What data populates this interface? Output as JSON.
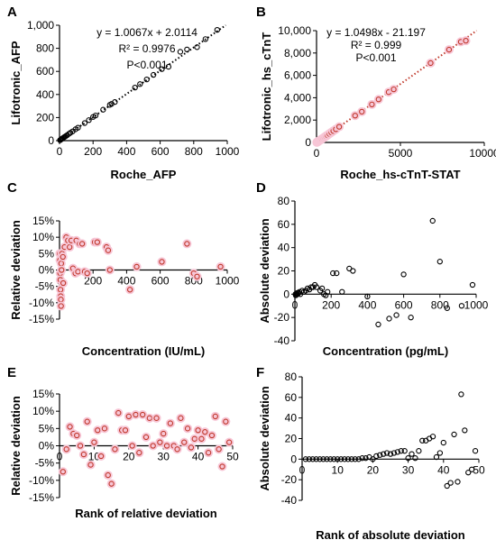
{
  "colors": {
    "black_marker": "#000000",
    "red_marker": "#c0392b",
    "marker_halo": "#f7c6d6",
    "red_fit_line": "#c0392b",
    "green_marker": "#2e8b57"
  },
  "chart_data": [
    {
      "id": "A",
      "letter": "A",
      "type": "scatter",
      "xlabel": "Roche_AFP",
      "ylabel": "Lifotronic_AFP",
      "xlim": [
        0,
        1000
      ],
      "ylim": [
        0,
        1000
      ],
      "xticks": [
        0,
        200,
        400,
        600,
        800,
        1000
      ],
      "yticks": [
        0,
        200,
        400,
        600,
        800,
        1000
      ],
      "xtick_labels": [
        "0",
        "200",
        "400",
        "600",
        "800",
        "1000"
      ],
      "ytick_labels": [
        "0",
        "200",
        "400",
        "600",
        "800",
        "1,000"
      ],
      "annotations": [
        "y = 1.0067x + 2.0114",
        "R² = 0.9976",
        "P<0.001"
      ],
      "fit_line": {
        "slope": 1.0067,
        "intercept": 2.0114,
        "color": "black"
      },
      "marker": "black",
      "points": [
        [
          3,
          4
        ],
        [
          6,
          7
        ],
        [
          9,
          11
        ],
        [
          12,
          14
        ],
        [
          16,
          17
        ],
        [
          20,
          22
        ],
        [
          26,
          28
        ],
        [
          31,
          33
        ],
        [
          38,
          40
        ],
        [
          45,
          47
        ],
        [
          55,
          58
        ],
        [
          65,
          68
        ],
        [
          78,
          80
        ],
        [
          95,
          98
        ],
        [
          110,
          112
        ],
        [
          150,
          152
        ],
        [
          175,
          178
        ],
        [
          200,
          205
        ],
        [
          215,
          218
        ],
        [
          260,
          268
        ],
        [
          300,
          310
        ],
        [
          310,
          318
        ],
        [
          330,
          335
        ],
        [
          450,
          460
        ],
        [
          480,
          490
        ],
        [
          520,
          530
        ],
        [
          560,
          570
        ],
        [
          610,
          620
        ],
        [
          650,
          640
        ],
        [
          720,
          770
        ],
        [
          760,
          790
        ],
        [
          820,
          810
        ],
        [
          870,
          880
        ],
        [
          940,
          960
        ]
      ]
    },
    {
      "id": "B",
      "letter": "B",
      "type": "scatter",
      "xlabel": "Roche_hs-cTnT-STAT",
      "ylabel": "Lifotronic_hs_cTnT",
      "xlim": [
        0,
        10000
      ],
      "ylim": [
        0,
        10000
      ],
      "xticks": [
        0,
        5000,
        10000
      ],
      "yticks": [
        0,
        2000,
        4000,
        6000,
        8000,
        10000
      ],
      "xtick_labels": [
        "0",
        "5000",
        "10000"
      ],
      "ytick_labels": [
        "0",
        "2,000",
        "4,000",
        "6,000",
        "8,000",
        "10,000"
      ],
      "annotations": [
        "y = 1.0498x - 21.197",
        "R² = 0.999",
        "P<0.001"
      ],
      "fit_line": {
        "slope": 1.0498,
        "intercept": -21.197,
        "color": "red"
      },
      "marker": "red",
      "points": [
        [
          20,
          10
        ],
        [
          40,
          30
        ],
        [
          60,
          50
        ],
        [
          90,
          80
        ],
        [
          120,
          110
        ],
        [
          160,
          150
        ],
        [
          200,
          190
        ],
        [
          260,
          250
        ],
        [
          320,
          310
        ],
        [
          400,
          390
        ],
        [
          480,
          470
        ],
        [
          560,
          560
        ],
        [
          650,
          650
        ],
        [
          760,
          770
        ],
        [
          880,
          900
        ],
        [
          1000,
          1030
        ],
        [
          1150,
          1180
        ],
        [
          1350,
          1400
        ],
        [
          2300,
          2400
        ],
        [
          2700,
          2750
        ],
        [
          3300,
          3400
        ],
        [
          3700,
          3850
        ],
        [
          4300,
          4500
        ],
        [
          4600,
          4750
        ],
        [
          6800,
          7100
        ],
        [
          7900,
          8300
        ],
        [
          8600,
          9000
        ],
        [
          8900,
          9100
        ]
      ]
    },
    {
      "id": "C",
      "letter": "C",
      "type": "scatter",
      "xlabel": "Concentration (IU/mL)",
      "ylabel": "Relative deviation",
      "xlim": [
        0,
        1000
      ],
      "ylim": [
        -15,
        15
      ],
      "xticks": [
        0,
        200,
        400,
        600,
        800,
        1000
      ],
      "yticks": [
        -15,
        -10,
        -5,
        0,
        5,
        10,
        15
      ],
      "xtick_labels": [
        "0",
        "200",
        "400",
        "600",
        "800",
        "1000"
      ],
      "ytick_labels": [
        "-15%",
        "-10%",
        "-5%",
        "0%",
        "5%",
        "10%",
        "15%"
      ],
      "annotations": [],
      "marker": "red",
      "points": [
        [
          2,
          5
        ],
        [
          3,
          3
        ],
        [
          4,
          -1
        ],
        [
          5,
          -3
        ],
        [
          6,
          -6
        ],
        [
          7,
          -8
        ],
        [
          8,
          -9
        ],
        [
          9,
          -11
        ],
        [
          10,
          2
        ],
        [
          12,
          0
        ],
        [
          15,
          5
        ],
        [
          20,
          4
        ],
        [
          22,
          -4
        ],
        [
          30,
          7
        ],
        [
          40,
          10
        ],
        [
          50,
          9
        ],
        [
          60,
          7
        ],
        [
          70,
          9
        ],
        [
          80,
          0.5
        ],
        [
          95,
          -1
        ],
        [
          100,
          9
        ],
        [
          110,
          -0.5
        ],
        [
          120,
          8
        ],
        [
          135,
          8
        ],
        [
          150,
          -0.5
        ],
        [
          165,
          -1
        ],
        [
          210,
          8.5
        ],
        [
          225,
          8.5
        ],
        [
          280,
          7
        ],
        [
          290,
          6
        ],
        [
          300,
          0
        ],
        [
          420,
          -6
        ],
        [
          460,
          1
        ],
        [
          610,
          2.5
        ],
        [
          760,
          8
        ],
        [
          800,
          -1
        ],
        [
          820,
          -2
        ],
        [
          960,
          1
        ]
      ]
    },
    {
      "id": "D",
      "letter": "D",
      "type": "scatter",
      "xlabel": "Concentration (pg/mL)",
      "ylabel": "Absolute deviation",
      "xlim": [
        0,
        1000
      ],
      "ylim": [
        -40,
        80
      ],
      "xticks": [
        0,
        200,
        400,
        600,
        800,
        1000
      ],
      "yticks": [
        -40,
        -20,
        0,
        20,
        40,
        60,
        80
      ],
      "xtick_labels": [
        "0",
        "200",
        "400",
        "600",
        "800",
        "1000"
      ],
      "ytick_labels": [
        "-40",
        "-20",
        "0",
        "20",
        "40",
        "60",
        "80"
      ],
      "annotations": [],
      "marker": "black",
      "points": [
        [
          3,
          0
        ],
        [
          5,
          -1
        ],
        [
          8,
          0
        ],
        [
          12,
          1
        ],
        [
          15,
          0
        ],
        [
          20,
          1
        ],
        [
          25,
          2
        ],
        [
          30,
          0
        ],
        [
          40,
          3
        ],
        [
          50,
          2
        ],
        [
          60,
          3
        ],
        [
          70,
          5
        ],
        [
          80,
          4
        ],
        [
          90,
          6
        ],
        [
          100,
          6
        ],
        [
          110,
          8
        ],
        [
          120,
          6
        ],
        [
          140,
          3
        ],
        [
          150,
          5
        ],
        [
          160,
          0
        ],
        [
          170,
          -1
        ],
        [
          180,
          2
        ],
        [
          210,
          18
        ],
        [
          230,
          18
        ],
        [
          260,
          2
        ],
        [
          300,
          22
        ],
        [
          320,
          20
        ],
        [
          400,
          -2
        ],
        [
          460,
          -26
        ],
        [
          520,
          -21
        ],
        [
          560,
          -18
        ],
        [
          600,
          17
        ],
        [
          640,
          -20
        ],
        [
          760,
          63
        ],
        [
          800,
          28
        ],
        [
          840,
          -12
        ],
        [
          920,
          -10
        ],
        [
          980,
          8
        ]
      ]
    },
    {
      "id": "E",
      "letter": "E",
      "type": "scatter",
      "xlabel": "Rank of relative deviation",
      "ylabel": "Relative deviation",
      "xlim": [
        0,
        50
      ],
      "ylim": [
        -15,
        15
      ],
      "xticks": [
        0,
        10,
        20,
        30,
        40,
        50
      ],
      "yticks": [
        -15,
        -10,
        -5,
        0,
        5,
        10,
        15
      ],
      "xtick_labels": [
        "0",
        "10",
        "20",
        "30",
        "40",
        "50"
      ],
      "ytick_labels": [
        "-15%",
        "-10%",
        "-5%",
        "0%",
        "5%",
        "10%",
        "15%"
      ],
      "annotations": [],
      "marker": "red",
      "points": [
        [
          1,
          -7.5
        ],
        [
          2,
          -1
        ],
        [
          3,
          5.5
        ],
        [
          4,
          3.5
        ],
        [
          5,
          3
        ],
        [
          6,
          0
        ],
        [
          7,
          -2.5
        ],
        [
          8,
          7
        ],
        [
          9,
          -5.5
        ],
        [
          10,
          1
        ],
        [
          11,
          4.5
        ],
        [
          12,
          -3
        ],
        [
          13,
          5
        ],
        [
          14,
          -8.5
        ],
        [
          15,
          -11
        ],
        [
          16,
          -1
        ],
        [
          17,
          9.5
        ],
        [
          18,
          4.5
        ],
        [
          19,
          4.5
        ],
        [
          20,
          8.5
        ],
        [
          21,
          0
        ],
        [
          22,
          9
        ],
        [
          23,
          -2
        ],
        [
          24,
          9
        ],
        [
          25,
          2.5
        ],
        [
          26,
          8
        ],
        [
          27,
          0
        ],
        [
          28,
          8
        ],
        [
          29,
          1
        ],
        [
          30,
          3.5
        ],
        [
          31,
          0
        ],
        [
          32,
          6.5
        ],
        [
          33,
          0
        ],
        [
          34,
          -1
        ],
        [
          35,
          8
        ],
        [
          36,
          1
        ],
        [
          37,
          5
        ],
        [
          38,
          -0.5
        ],
        [
          39,
          2
        ],
        [
          40,
          4.5
        ],
        [
          41,
          2
        ],
        [
          42,
          4
        ],
        [
          43,
          -2
        ],
        [
          44,
          3
        ],
        [
          45,
          8.5
        ],
        [
          46,
          -1
        ],
        [
          47,
          -6
        ],
        [
          48,
          7
        ],
        [
          49,
          1
        ]
      ]
    },
    {
      "id": "F",
      "letter": "F",
      "type": "scatter",
      "xlabel": "Rank of absolute deviation",
      "ylabel": "Absolute deviation",
      "xlim": [
        0,
        50
      ],
      "ylim": [
        -40,
        80
      ],
      "xticks": [
        0,
        10,
        20,
        30,
        40,
        50
      ],
      "yticks": [
        -40,
        -20,
        0,
        20,
        40,
        60,
        80
      ],
      "xtick_labels": [
        "0",
        "10",
        "20",
        "30",
        "40",
        "50"
      ],
      "ytick_labels": [
        "-40",
        "-20",
        "0",
        "20",
        "40",
        "60",
        "80"
      ],
      "annotations": [],
      "marker": "black",
      "points": [
        [
          1,
          0
        ],
        [
          2,
          0
        ],
        [
          3,
          0
        ],
        [
          4,
          0
        ],
        [
          5,
          0
        ],
        [
          6,
          0
        ],
        [
          7,
          0
        ],
        [
          8,
          0
        ],
        [
          9,
          0
        ],
        [
          10,
          0
        ],
        [
          11,
          0
        ],
        [
          12,
          0
        ],
        [
          13,
          0
        ],
        [
          14,
          0
        ],
        [
          15,
          0
        ],
        [
          16,
          0
        ],
        [
          17,
          1
        ],
        [
          18,
          1
        ],
        [
          19,
          2
        ],
        [
          20,
          0
        ],
        [
          21,
          3
        ],
        [
          22,
          4
        ],
        [
          23,
          5
        ],
        [
          24,
          6
        ],
        [
          25,
          5
        ],
        [
          26,
          6
        ],
        [
          27,
          7
        ],
        [
          28,
          8
        ],
        [
          29,
          8
        ],
        [
          30,
          1
        ],
        [
          31,
          5
        ],
        [
          32,
          1
        ],
        [
          33,
          8
        ],
        [
          34,
          18
        ],
        [
          35,
          18
        ],
        [
          36,
          20
        ],
        [
          37,
          22
        ],
        [
          38,
          2
        ],
        [
          39,
          6
        ],
        [
          40,
          16
        ],
        [
          41,
          -26
        ],
        [
          42,
          -23
        ],
        [
          43,
          24
        ],
        [
          44,
          -22
        ],
        [
          45,
          63
        ],
        [
          46,
          28
        ],
        [
          47,
          -13
        ],
        [
          48,
          -10
        ],
        [
          49,
          8
        ]
      ]
    }
  ]
}
